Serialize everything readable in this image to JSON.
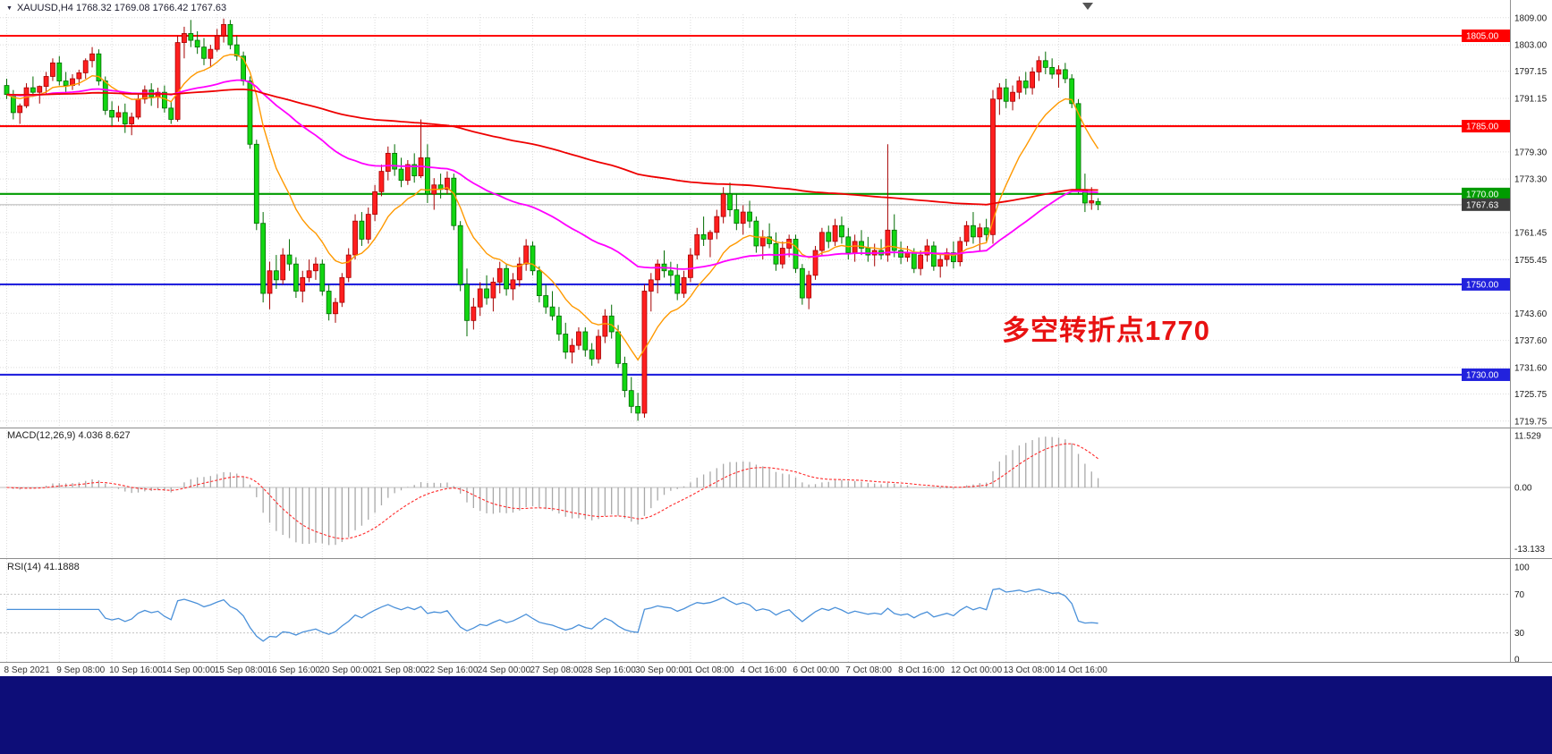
{
  "header": {
    "icon": "▼",
    "text": "XAUUSD,H4 1768.32 1769.08 1766.42 1767.63"
  },
  "bottom_bar": {
    "color": "#0d0d78"
  },
  "chart_data": [
    {
      "type": "candlestick",
      "symbol": "XAUUSD",
      "timeframe": "H4",
      "ylim": [
        1717.5,
        1811.5
      ],
      "up_color": "#ff1f1f",
      "down_color": "#12d612",
      "up_edge_color": "#a50000",
      "down_edge_color": "#006b00",
      "grid": true,
      "price_axis_labels": [
        "1809.00",
        "1803.00",
        "1797.15",
        "1791.15",
        "1785.30",
        "1779.30",
        "1773.30",
        "1767.45",
        "1761.45",
        "1755.45",
        "1749.60",
        "1743.60",
        "1737.60",
        "1731.60",
        "1725.75",
        "1719.75"
      ],
      "hlines": [
        {
          "price": 1805.0,
          "label": "1805.00",
          "color": "#ff0000"
        },
        {
          "price": 1785.0,
          "label": "1785.00",
          "color": "#ff0000"
        },
        {
          "price": 1770.0,
          "label": "1770.00",
          "color": "#009b00"
        },
        {
          "price": 1750.0,
          "label": "1750.00",
          "color": "#2222dd"
        },
        {
          "price": 1730.0,
          "label": "1730.00",
          "color": "#2222dd"
        }
      ],
      "current_price": {
        "value": 1767.63,
        "label": "1767.63",
        "box_color": "#3d3d3d",
        "line_color": "#b4b4b4"
      },
      "annotation": {
        "text": "多空转折点1770",
        "color": "#e81212"
      },
      "ma_lines": [
        {
          "name": "fast-ma-line",
          "period": 12,
          "color": "#ff9900",
          "width": 1.4
        },
        {
          "name": "mid-ma-line",
          "period": 60,
          "color": "#ff00ff",
          "width": 1.8
        },
        {
          "name": "slow-ma-line",
          "period": 200,
          "color": "#ee0000",
          "width": 1.8
        }
      ],
      "time_labels": [
        {
          "text": "8 Sep 2021",
          "bar": 0
        },
        {
          "text": "9 Sep 08:00",
          "bar": 8
        },
        {
          "text": "10 Sep 16:00",
          "bar": 16
        },
        {
          "text": "14 Sep 00:00",
          "bar": 24
        },
        {
          "text": "15 Sep 08:00",
          "bar": 32
        },
        {
          "text": "16 Sep 16:00",
          "bar": 40
        },
        {
          "text": "20 Sep 00:00",
          "bar": 48
        },
        {
          "text": "21 Sep 08:00",
          "bar": 56
        },
        {
          "text": "22 Sep 16:00",
          "bar": 64
        },
        {
          "text": "24 Sep 00:00",
          "bar": 72
        },
        {
          "text": "27 Sep 08:00",
          "bar": 80
        },
        {
          "text": "28 Sep 16:00",
          "bar": 88
        },
        {
          "text": "30 Sep 00:00",
          "bar": 96
        },
        {
          "text": "1 Oct 08:00",
          "bar": 104
        },
        {
          "text": "4 Oct 16:00",
          "bar": 112
        },
        {
          "text": "6 Oct 00:00",
          "bar": 120
        },
        {
          "text": "7 Oct 08:00",
          "bar": 128
        },
        {
          "text": "8 Oct 16:00",
          "bar": 136
        },
        {
          "text": "12 Oct 00:00",
          "bar": 144
        },
        {
          "text": "13 Oct 08:00",
          "bar": 152
        },
        {
          "text": "14 Oct 16:00",
          "bar": 160
        }
      ],
      "candles": [
        [
          1794.0,
          1795.5,
          1791.0,
          1792.0
        ],
        [
          1792.0,
          1793.0,
          1786.5,
          1788.0
        ],
        [
          1788.0,
          1790.0,
          1785.5,
          1789.5
        ],
        [
          1789.5,
          1794.5,
          1789.0,
          1793.5
        ],
        [
          1793.5,
          1796.0,
          1791.5,
          1792.5
        ],
        [
          1792.5,
          1794.0,
          1790.0,
          1793.8
        ],
        [
          1793.8,
          1797.0,
          1792.0,
          1796.0
        ],
        [
          1796.0,
          1800.0,
          1795.0,
          1799.0
        ],
        [
          1799.0,
          1800.5,
          1794.0,
          1795.0
        ],
        [
          1795.0,
          1797.0,
          1792.5,
          1794.0
        ],
        [
          1794.0,
          1796.5,
          1793.0,
          1795.5
        ],
        [
          1795.5,
          1797.5,
          1794.0,
          1796.8
        ],
        [
          1796.8,
          1800.0,
          1795.5,
          1799.5
        ],
        [
          1799.5,
          1802.5,
          1798.0,
          1801.0
        ],
        [
          1801.0,
          1802.0,
          1794.0,
          1795.0
        ],
        [
          1795.0,
          1796.0,
          1787.5,
          1788.5
        ],
        [
          1788.5,
          1790.5,
          1785.0,
          1787.0
        ],
        [
          1787.0,
          1789.5,
          1786.0,
          1788.0
        ],
        [
          1788.0,
          1790.0,
          1783.5,
          1785.5
        ],
        [
          1785.5,
          1788.0,
          1783.0,
          1787.0
        ],
        [
          1787.0,
          1792.0,
          1786.5,
          1791.0
        ],
        [
          1791.0,
          1794.0,
          1790.0,
          1793.0
        ],
        [
          1793.0,
          1794.5,
          1789.5,
          1791.5
        ],
        [
          1791.5,
          1793.5,
          1789.0,
          1792.5
        ],
        [
          1792.5,
          1794.0,
          1788.0,
          1789.0
        ],
        [
          1789.0,
          1790.5,
          1785.5,
          1786.5
        ],
        [
          1786.5,
          1805.0,
          1786.0,
          1803.5
        ],
        [
          1803.5,
          1807.0,
          1800.0,
          1805.5
        ],
        [
          1805.5,
          1808.5,
          1802.5,
          1804.0
        ],
        [
          1804.0,
          1806.0,
          1801.0,
          1802.5
        ],
        [
          1802.5,
          1804.5,
          1798.5,
          1800.0
        ],
        [
          1800.0,
          1803.0,
          1798.0,
          1802.0
        ],
        [
          1802.0,
          1806.5,
          1801.5,
          1805.0
        ],
        [
          1805.0,
          1808.8,
          1803.5,
          1807.5
        ],
        [
          1807.5,
          1808.5,
          1802.0,
          1803.0
        ],
        [
          1803.0,
          1805.0,
          1799.5,
          1800.5
        ],
        [
          1800.5,
          1801.5,
          1794.0,
          1795.0
        ],
        [
          1795.0,
          1796.0,
          1780.0,
          1781.0
        ],
        [
          1781.0,
          1782.0,
          1762.0,
          1763.5
        ],
        [
          1763.5,
          1766.0,
          1746.0,
          1748.0
        ],
        [
          1748.0,
          1755.0,
          1744.5,
          1753.0
        ],
        [
          1753.0,
          1756.5,
          1749.0,
          1751.0
        ],
        [
          1751.0,
          1758.0,
          1750.0,
          1756.5
        ],
        [
          1756.5,
          1760.0,
          1753.0,
          1754.5
        ],
        [
          1754.5,
          1756.0,
          1747.0,
          1748.5
        ],
        [
          1748.5,
          1753.0,
          1746.0,
          1751.5
        ],
        [
          1751.5,
          1755.5,
          1750.5,
          1753.0
        ],
        [
          1753.0,
          1756.0,
          1751.0,
          1754.5
        ],
        [
          1754.5,
          1755.5,
          1747.5,
          1748.5
        ],
        [
          1748.5,
          1750.0,
          1742.0,
          1743.5
        ],
        [
          1743.5,
          1747.0,
          1741.5,
          1746.0
        ],
        [
          1746.0,
          1752.5,
          1745.0,
          1751.5
        ],
        [
          1751.5,
          1758.0,
          1750.5,
          1756.5
        ],
        [
          1756.5,
          1765.5,
          1755.5,
          1764.0
        ],
        [
          1764.0,
          1766.0,
          1758.5,
          1760.0
        ],
        [
          1760.0,
          1767.0,
          1759.0,
          1765.5
        ],
        [
          1765.5,
          1772.0,
          1764.0,
          1770.5
        ],
        [
          1770.5,
          1776.5,
          1769.5,
          1775.0
        ],
        [
          1775.0,
          1780.5,
          1773.0,
          1779.0
        ],
        [
          1779.0,
          1781.0,
          1774.0,
          1775.5
        ],
        [
          1775.5,
          1778.0,
          1771.5,
          1773.0
        ],
        [
          1773.0,
          1777.5,
          1772.0,
          1776.5
        ],
        [
          1776.5,
          1779.0,
          1772.5,
          1774.0
        ],
        [
          1774.0,
          1786.5,
          1773.5,
          1778.0
        ],
        [
          1778.0,
          1781.0,
          1768.0,
          1770.0
        ],
        [
          1770.0,
          1773.5,
          1766.5,
          1772.0
        ],
        [
          1772.0,
          1774.5,
          1769.0,
          1771.0
        ],
        [
          1771.0,
          1775.0,
          1770.0,
          1773.5
        ],
        [
          1773.5,
          1774.5,
          1762.0,
          1763.0
        ],
        [
          1763.0,
          1764.0,
          1748.5,
          1750.0
        ],
        [
          1750.0,
          1753.5,
          1738.5,
          1742.0
        ],
        [
          1742.0,
          1747.0,
          1740.0,
          1745.0
        ],
        [
          1745.0,
          1750.5,
          1743.0,
          1749.0
        ],
        [
          1749.0,
          1752.0,
          1745.5,
          1747.0
        ],
        [
          1747.0,
          1751.5,
          1744.0,
          1750.5
        ],
        [
          1750.5,
          1755.0,
          1748.0,
          1753.5
        ],
        [
          1753.5,
          1754.5,
          1747.5,
          1749.0
        ],
        [
          1749.0,
          1752.5,
          1746.5,
          1751.0
        ],
        [
          1751.0,
          1756.0,
          1749.5,
          1754.5
        ],
        [
          1754.5,
          1760.0,
          1753.0,
          1758.5
        ],
        [
          1758.5,
          1759.5,
          1752.0,
          1753.0
        ],
        [
          1753.0,
          1754.0,
          1746.0,
          1747.5
        ],
        [
          1747.5,
          1750.0,
          1743.5,
          1745.0
        ],
        [
          1745.0,
          1748.5,
          1742.0,
          1743.0
        ],
        [
          1743.0,
          1745.0,
          1737.5,
          1739.0
        ],
        [
          1739.0,
          1741.5,
          1733.5,
          1735.0
        ],
        [
          1735.0,
          1738.0,
          1732.5,
          1736.5
        ],
        [
          1736.5,
          1740.5,
          1735.5,
          1739.5
        ],
        [
          1739.5,
          1740.5,
          1734.0,
          1735.5
        ],
        [
          1735.5,
          1737.0,
          1732.0,
          1733.5
        ],
        [
          1733.5,
          1740.0,
          1732.5,
          1738.5
        ],
        [
          1738.5,
          1744.5,
          1737.0,
          1743.0
        ],
        [
          1743.0,
          1745.5,
          1738.0,
          1739.5
        ],
        [
          1739.5,
          1741.0,
          1731.5,
          1732.5
        ],
        [
          1732.5,
          1734.0,
          1725.0,
          1726.5
        ],
        [
          1726.5,
          1729.5,
          1721.5,
          1723.0
        ],
        [
          1723.0,
          1726.0,
          1719.8,
          1721.5
        ],
        [
          1721.5,
          1750.0,
          1720.5,
          1748.5
        ],
        [
          1748.5,
          1752.5,
          1744.0,
          1751.0
        ],
        [
          1751.0,
          1755.5,
          1748.0,
          1754.5
        ],
        [
          1754.5,
          1757.5,
          1751.5,
          1753.0
        ],
        [
          1753.0,
          1755.0,
          1749.5,
          1752.0
        ],
        [
          1752.0,
          1754.5,
          1746.5,
          1748.0
        ],
        [
          1748.0,
          1753.0,
          1747.0,
          1751.5
        ],
        [
          1751.5,
          1758.0,
          1750.5,
          1756.5
        ],
        [
          1756.5,
          1762.5,
          1755.5,
          1761.0
        ],
        [
          1761.0,
          1765.0,
          1758.5,
          1760.0
        ],
        [
          1760.0,
          1762.0,
          1756.0,
          1761.5
        ],
        [
          1761.5,
          1766.5,
          1760.0,
          1765.0
        ],
        [
          1765.0,
          1771.5,
          1763.5,
          1770.0
        ],
        [
          1770.0,
          1772.5,
          1765.0,
          1766.5
        ],
        [
          1766.5,
          1770.0,
          1762.0,
          1763.5
        ],
        [
          1763.5,
          1767.5,
          1761.0,
          1766.0
        ],
        [
          1766.0,
          1768.5,
          1762.5,
          1764.0
        ],
        [
          1764.0,
          1765.0,
          1757.0,
          1758.5
        ],
        [
          1758.5,
          1762.0,
          1755.5,
          1760.5
        ],
        [
          1760.5,
          1763.5,
          1758.0,
          1759.0
        ],
        [
          1759.0,
          1761.5,
          1753.0,
          1754.5
        ],
        [
          1754.5,
          1759.5,
          1753.5,
          1758.0
        ],
        [
          1758.0,
          1761.0,
          1756.0,
          1760.0
        ],
        [
          1760.0,
          1761.0,
          1752.5,
          1753.5
        ],
        [
          1753.5,
          1754.5,
          1745.5,
          1747.0
        ],
        [
          1747.0,
          1753.0,
          1744.5,
          1752.0
        ],
        [
          1752.0,
          1758.5,
          1751.0,
          1757.5
        ],
        [
          1757.5,
          1762.5,
          1756.5,
          1761.5
        ],
        [
          1761.5,
          1763.0,
          1758.0,
          1759.5
        ],
        [
          1759.5,
          1764.5,
          1758.5,
          1763.0
        ],
        [
          1763.0,
          1765.0,
          1759.0,
          1760.5
        ],
        [
          1760.5,
          1762.5,
          1755.5,
          1757.0
        ],
        [
          1757.0,
          1761.0,
          1755.0,
          1759.5
        ],
        [
          1759.5,
          1762.0,
          1756.5,
          1758.0
        ],
        [
          1758.0,
          1760.5,
          1755.0,
          1756.5
        ],
        [
          1756.5,
          1759.0,
          1754.0,
          1757.5
        ],
        [
          1757.5,
          1760.0,
          1755.5,
          1756.5
        ],
        [
          1756.5,
          1781.0,
          1755.0,
          1762.0
        ],
        [
          1762.0,
          1765.5,
          1756.0,
          1757.5
        ],
        [
          1757.5,
          1759.5,
          1754.5,
          1756.0
        ],
        [
          1756.0,
          1758.5,
          1755.0,
          1757.0
        ],
        [
          1757.0,
          1758.0,
          1752.5,
          1753.5
        ],
        [
          1753.5,
          1757.5,
          1752.0,
          1756.5
        ],
        [
          1756.5,
          1760.0,
          1755.0,
          1758.5
        ],
        [
          1758.5,
          1759.5,
          1753.0,
          1754.0
        ],
        [
          1754.0,
          1756.5,
          1751.5,
          1755.5
        ],
        [
          1755.5,
          1758.0,
          1754.0,
          1757.0
        ],
        [
          1757.0,
          1759.5,
          1753.5,
          1755.0
        ],
        [
          1755.0,
          1760.5,
          1754.0,
          1759.5
        ],
        [
          1759.5,
          1764.0,
          1758.5,
          1763.0
        ],
        [
          1763.0,
          1766.0,
          1759.0,
          1760.5
        ],
        [
          1760.5,
          1763.5,
          1757.5,
          1762.5
        ],
        [
          1762.5,
          1764.5,
          1759.5,
          1761.0
        ],
        [
          1761.0,
          1793.0,
          1759.0,
          1791.0
        ],
        [
          1791.0,
          1794.5,
          1787.5,
          1793.5
        ],
        [
          1793.5,
          1795.5,
          1789.0,
          1790.5
        ],
        [
          1790.5,
          1794.0,
          1788.5,
          1792.5
        ],
        [
          1792.5,
          1796.0,
          1791.0,
          1795.0
        ],
        [
          1795.0,
          1797.0,
          1792.0,
          1793.5
        ],
        [
          1793.5,
          1798.0,
          1792.0,
          1797.0
        ],
        [
          1797.0,
          1800.5,
          1795.0,
          1799.5
        ],
        [
          1799.5,
          1801.5,
          1796.5,
          1798.0
        ],
        [
          1798.0,
          1800.0,
          1795.5,
          1796.5
        ],
        [
          1796.5,
          1798.5,
          1793.5,
          1797.5
        ],
        [
          1797.5,
          1799.0,
          1794.5,
          1795.5
        ],
        [
          1795.5,
          1796.5,
          1789.0,
          1790.0
        ],
        [
          1790.0,
          1791.0,
          1770.0,
          1771.0
        ],
        [
          1771.0,
          1774.5,
          1766.0,
          1768.0
        ],
        [
          1768.0,
          1771.5,
          1766.5,
          1768.5
        ],
        [
          1768.32,
          1769.08,
          1766.42,
          1767.63
        ]
      ]
    },
    {
      "type": "macd",
      "label": "MACD(12,26,9) 4.036 8.627",
      "fast": 12,
      "slow": 26,
      "signal": 9,
      "macd_value": "4.036",
      "signal_value": "8.627",
      "axis_labels": [
        "11.529",
        "0.00",
        "-13.133"
      ],
      "histogram_color": "#a8a8a8",
      "signal_color": "#ff2a2a",
      "zero_line_color": "#bdbdbd"
    },
    {
      "type": "rsi",
      "label": "RSI(14) 41.1888",
      "period": 14,
      "current_value": "41.1888",
      "axis_labels": [
        "100",
        "70",
        "30",
        "0"
      ],
      "levels": [
        70,
        30
      ],
      "line_color": "#4a90d9"
    }
  ]
}
